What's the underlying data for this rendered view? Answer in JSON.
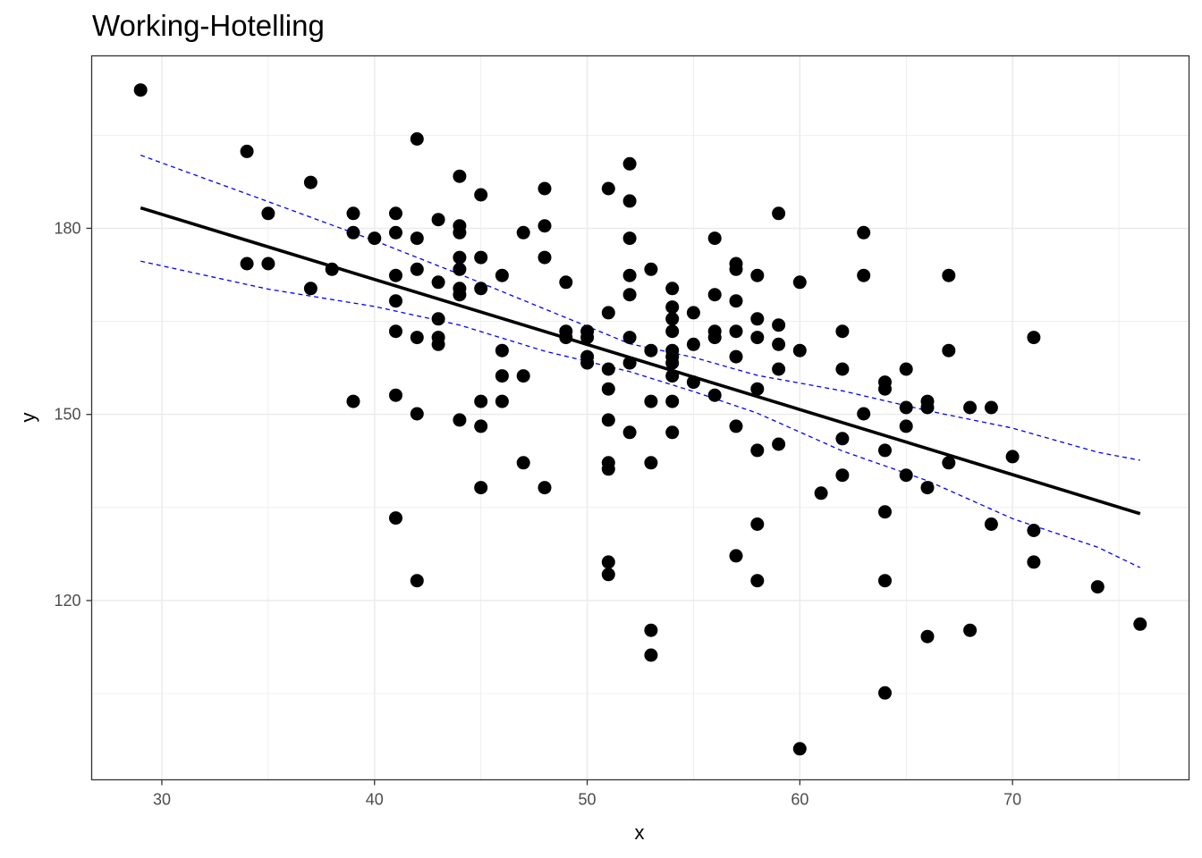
{
  "chart_data": {
    "type": "scatter",
    "title": "Working-Hotelling",
    "xlabel": "x",
    "ylabel": "y",
    "xlim": [
      26.7,
      78.3
    ],
    "ylim": [
      91.1,
      207.8
    ],
    "x_ticks": [
      30,
      40,
      50,
      60,
      70
    ],
    "y_ticks": [
      120,
      150,
      180
    ],
    "x_tick_labels": [
      "30",
      "40",
      "50",
      "60",
      "70"
    ],
    "y_tick_labels": [
      "120",
      "150",
      "180"
    ],
    "grid": true,
    "colors": {
      "points": "#000000",
      "fit": "#000000",
      "band": "#0000ff",
      "grid": "#ebebeb",
      "panel_border": "#333333"
    },
    "points": [
      [
        29,
        202.3
      ],
      [
        34,
        192.4
      ],
      [
        34,
        174.3
      ],
      [
        35,
        182.4
      ],
      [
        35,
        174.3
      ],
      [
        37,
        187.4
      ],
      [
        37,
        170.3
      ],
      [
        38,
        173.4
      ],
      [
        39,
        182.4
      ],
      [
        39,
        179.3
      ],
      [
        39,
        152.1
      ],
      [
        40,
        178.4
      ],
      [
        41,
        182.4
      ],
      [
        41,
        179.3
      ],
      [
        41,
        172.4
      ],
      [
        41,
        168.3
      ],
      [
        41,
        163.4
      ],
      [
        41,
        153.1
      ],
      [
        41,
        133.3
      ],
      [
        42,
        194.4
      ],
      [
        42,
        178.4
      ],
      [
        42,
        173.4
      ],
      [
        42,
        162.4
      ],
      [
        42,
        150.1
      ],
      [
        42,
        123.2
      ],
      [
        43,
        181.4
      ],
      [
        43,
        171.3
      ],
      [
        43,
        165.4
      ],
      [
        43,
        162.4
      ],
      [
        43,
        161.3
      ],
      [
        44,
        188.4
      ],
      [
        44,
        180.4
      ],
      [
        44,
        179.3
      ],
      [
        44,
        175.3
      ],
      [
        44,
        173.4
      ],
      [
        44,
        170.3
      ],
      [
        44,
        169.3
      ],
      [
        44,
        149.1
      ],
      [
        45,
        185.4
      ],
      [
        45,
        175.3
      ],
      [
        45,
        170.3
      ],
      [
        45,
        152.1
      ],
      [
        45,
        148.1
      ],
      [
        45,
        138.2
      ],
      [
        46,
        172.4
      ],
      [
        46,
        160.3
      ],
      [
        46,
        156.2
      ],
      [
        46,
        152.1
      ],
      [
        47,
        179.3
      ],
      [
        47,
        156.2
      ],
      [
        47,
        142.2
      ],
      [
        48,
        186.4
      ],
      [
        48,
        180.4
      ],
      [
        48,
        175.3
      ],
      [
        48,
        138.2
      ],
      [
        49,
        171.3
      ],
      [
        49,
        163.4
      ],
      [
        49,
        162.4
      ],
      [
        50,
        163.4
      ],
      [
        50,
        162.4
      ],
      [
        50,
        159.3
      ],
      [
        50,
        158.3
      ],
      [
        51,
        186.4
      ],
      [
        51,
        166.4
      ],
      [
        51,
        157.3
      ],
      [
        51,
        154.1
      ],
      [
        51,
        149.1
      ],
      [
        51,
        142.2
      ],
      [
        51,
        141.2
      ],
      [
        51,
        126.2
      ],
      [
        51,
        124.2
      ],
      [
        52,
        190.4
      ],
      [
        52,
        184.4
      ],
      [
        52,
        178.4
      ],
      [
        52,
        172.4
      ],
      [
        52,
        169.3
      ],
      [
        52,
        162.4
      ],
      [
        52,
        158.3
      ],
      [
        52,
        147.1
      ],
      [
        53,
        173.4
      ],
      [
        53,
        160.3
      ],
      [
        53,
        152.1
      ],
      [
        53,
        142.2
      ],
      [
        53,
        115.2
      ],
      [
        53,
        111.2
      ],
      [
        54,
        170.3
      ],
      [
        54,
        167.3
      ],
      [
        54,
        165.4
      ],
      [
        54,
        163.4
      ],
      [
        54,
        160.3
      ],
      [
        54,
        159.3
      ],
      [
        54,
        158.3
      ],
      [
        54,
        156.2
      ],
      [
        54,
        152.1
      ],
      [
        54,
        147.1
      ],
      [
        55,
        166.4
      ],
      [
        55,
        161.3
      ],
      [
        55,
        155.2
      ],
      [
        56,
        178.4
      ],
      [
        56,
        169.3
      ],
      [
        56,
        163.4
      ],
      [
        56,
        162.4
      ],
      [
        56,
        153.1
      ],
      [
        57,
        174.3
      ],
      [
        57,
        173.4
      ],
      [
        57,
        168.3
      ],
      [
        57,
        163.4
      ],
      [
        57,
        159.3
      ],
      [
        57,
        148.1
      ],
      [
        57,
        127.2
      ],
      [
        58,
        172.4
      ],
      [
        58,
        165.4
      ],
      [
        58,
        162.4
      ],
      [
        58,
        154.1
      ],
      [
        58,
        144.2
      ],
      [
        58,
        132.3
      ],
      [
        58,
        123.2
      ],
      [
        59,
        182.4
      ],
      [
        59,
        164.4
      ],
      [
        59,
        161.3
      ],
      [
        59,
        157.3
      ],
      [
        59,
        145.2
      ],
      [
        60,
        171.3
      ],
      [
        60,
        160.3
      ],
      [
        60,
        96.1
      ],
      [
        61,
        137.3
      ],
      [
        62,
        163.4
      ],
      [
        62,
        157.3
      ],
      [
        62,
        146.1
      ],
      [
        62,
        140.2
      ],
      [
        63,
        179.3
      ],
      [
        63,
        172.4
      ],
      [
        63,
        150.1
      ],
      [
        64,
        155.2
      ],
      [
        64,
        154.1
      ],
      [
        64,
        144.2
      ],
      [
        64,
        134.3
      ],
      [
        64,
        123.2
      ],
      [
        64,
        105.1
      ],
      [
        65,
        157.3
      ],
      [
        65,
        151.1
      ],
      [
        65,
        148.1
      ],
      [
        65,
        140.2
      ],
      [
        66,
        152.1
      ],
      [
        66,
        151.1
      ],
      [
        66,
        138.2
      ],
      [
        66,
        114.2
      ],
      [
        67,
        172.4
      ],
      [
        67,
        160.3
      ],
      [
        67,
        142.2
      ],
      [
        68,
        151.1
      ],
      [
        68,
        115.2
      ],
      [
        69,
        151.1
      ],
      [
        69,
        132.3
      ],
      [
        70,
        143.2
      ],
      [
        71,
        162.4
      ],
      [
        71,
        131.3
      ],
      [
        71,
        126.2
      ],
      [
        74,
        122.2
      ],
      [
        76,
        116.2
      ]
    ],
    "fit_line": {
      "x": [
        29,
        76
      ],
      "y": [
        183.3,
        134.0
      ]
    },
    "band_upper": {
      "x": [
        29,
        35,
        40,
        44,
        48,
        52,
        55,
        58,
        62,
        66,
        70,
        74,
        76
      ],
      "y": [
        191.8,
        184.3,
        178.0,
        172.6,
        167.0,
        161.4,
        159.2,
        156.3,
        153.8,
        150.6,
        147.8,
        143.9,
        142.6
      ]
    },
    "band_lower": {
      "x": [
        29,
        35,
        40,
        44,
        48,
        52,
        55,
        58,
        62,
        66,
        70,
        74,
        76
      ],
      "y": [
        174.7,
        170.2,
        167.4,
        164.4,
        160.2,
        156.9,
        153.7,
        150.2,
        144.1,
        139.3,
        133.2,
        128.6,
        125.3
      ]
    }
  }
}
